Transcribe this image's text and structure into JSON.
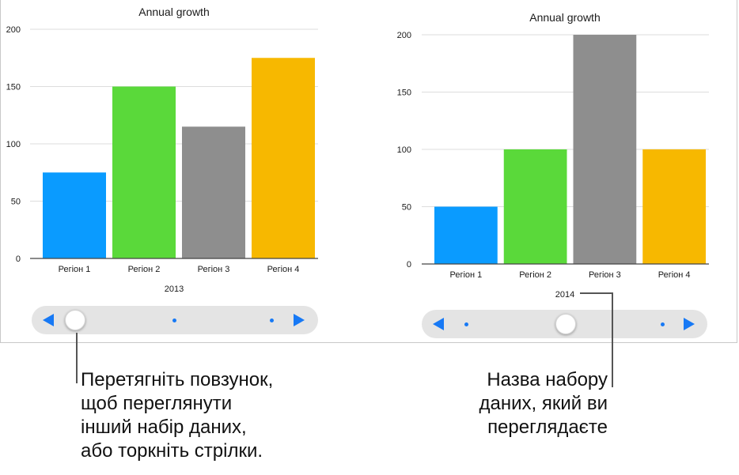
{
  "chart_data": [
    {
      "type": "bar",
      "title": "Annual growth",
      "dataset_label": "2013",
      "categories": [
        "Регіон 1",
        "Регіон 2",
        "Регіон 3",
        "Регіон 4"
      ],
      "values": [
        75,
        150,
        115,
        175
      ],
      "colors": [
        "#0a9bff",
        "#5ad93a",
        "#8e8e8e",
        "#f7b800"
      ],
      "ylim": [
        0,
        200
      ],
      "yticks": [
        0,
        50,
        100,
        150,
        200
      ],
      "grid": true,
      "slider_position": 0.0
    },
    {
      "type": "bar",
      "title": "Annual growth",
      "dataset_label": "2014",
      "categories": [
        "Регіон 1",
        "Регіон 2",
        "Регіон 3",
        "Регіон 4"
      ],
      "values": [
        50,
        100,
        200,
        100
      ],
      "colors": [
        "#0a9bff",
        "#5ad93a",
        "#8e8e8e",
        "#f7b800"
      ],
      "ylim": [
        0,
        200
      ],
      "yticks": [
        0,
        50,
        100,
        150,
        200
      ],
      "grid": true,
      "slider_position": 0.5
    }
  ],
  "callouts": {
    "slider_lines": [
      "Перетягніть повзунок,",
      "щоб переглянути",
      "інший набір даних,",
      "або торкніть стрілки."
    ],
    "dataset_lines": [
      "Назва набору",
      "даних, який ви",
      "переглядаєте"
    ]
  }
}
